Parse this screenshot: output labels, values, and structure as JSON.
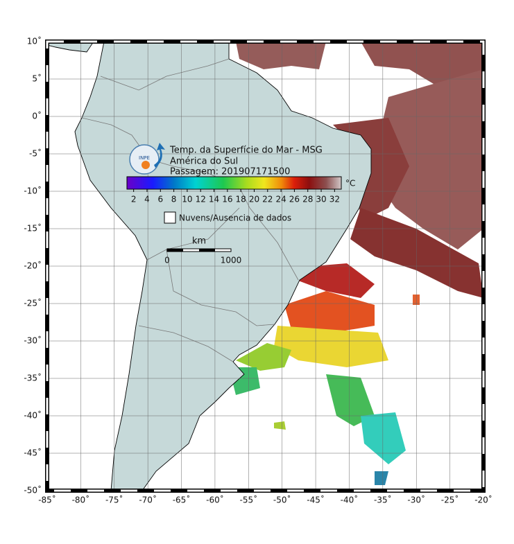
{
  "map": {
    "title_lines": [
      "Temp. da Superfície do Mar - MSG",
      "América do Sul",
      "Passagem: 201907171500"
    ],
    "logo": "INPE",
    "xlim": [
      -85,
      -20
    ],
    "ylim": [
      -50,
      10
    ],
    "xticks": [
      {
        "value": -85,
        "label": "-85˚"
      },
      {
        "value": -80,
        "label": "-80˚"
      },
      {
        "value": -75,
        "label": "-75˚"
      },
      {
        "value": -70,
        "label": "-70˚"
      },
      {
        "value": -65,
        "label": "-65˚"
      },
      {
        "value": -60,
        "label": "-60˚"
      },
      {
        "value": -55,
        "label": "-55˚"
      },
      {
        "value": -50,
        "label": "-50˚"
      },
      {
        "value": -45,
        "label": "-45˚"
      },
      {
        "value": -40,
        "label": "-40˚"
      },
      {
        "value": -35,
        "label": "-35˚"
      },
      {
        "value": -30,
        "label": "-30˚"
      },
      {
        "value": -25,
        "label": "-25˚"
      },
      {
        "value": -20,
        "label": "-20˚"
      }
    ],
    "yticks": [
      {
        "value": 10,
        "label": "10˚"
      },
      {
        "value": 5,
        "label": "5˚"
      },
      {
        "value": 0,
        "label": "0˚"
      },
      {
        "value": -5,
        "label": "-5˚"
      },
      {
        "value": -10,
        "label": "-10˚"
      },
      {
        "value": -15,
        "label": "-15˚"
      },
      {
        "value": -20,
        "label": "-20˚"
      },
      {
        "value": -25,
        "label": "-25˚"
      },
      {
        "value": -30,
        "label": "-30˚"
      },
      {
        "value": -35,
        "label": "-35˚"
      },
      {
        "value": -40,
        "label": "-40˚"
      },
      {
        "value": -45,
        "label": "-45˚"
      },
      {
        "value": -50,
        "label": "-50˚"
      }
    ],
    "colorbar": {
      "unit": "°C",
      "lim": [
        1,
        33
      ],
      "ticks": [
        2,
        4,
        6,
        8,
        10,
        12,
        14,
        16,
        18,
        20,
        22,
        24,
        26,
        28,
        30,
        32
      ]
    },
    "legend": "Nuvens/Ausencia de dados",
    "scale_bar": {
      "unit": "km",
      "ticks": [
        0,
        1000
      ]
    }
  }
}
